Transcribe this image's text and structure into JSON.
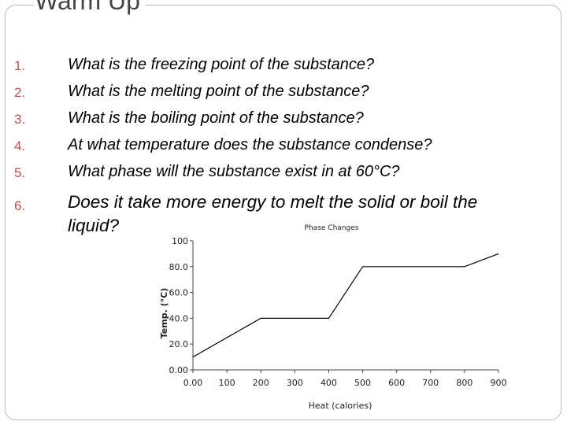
{
  "slide": {
    "title": "Warm Up",
    "questions": [
      {
        "num": "1.",
        "text": "What is the freezing point of the substance?"
      },
      {
        "num": "2.",
        "text": "What is the melting point of the substance?"
      },
      {
        "num": "3.",
        "text": "What is the boiling point of the substance?"
      },
      {
        "num": "4.",
        "text": "At what temperature does the substance condense?"
      },
      {
        "num": "5.",
        "text": "What phase will the substance exist in at 60°C?"
      },
      {
        "num": "6.",
        "text": "Does it take more energy to melt the solid or boil the liquid?"
      }
    ]
  },
  "chart_data": {
    "type": "line",
    "title": "Phase Changes",
    "xlabel": "Heat (calories)",
    "ylabel": "Temp. (°C)",
    "xlim": [
      0,
      900
    ],
    "ylim": [
      0,
      100
    ],
    "x_ticks": [
      "0.00",
      "100",
      "200",
      "300",
      "400",
      "500",
      "600",
      "700",
      "800",
      "900"
    ],
    "y_ticks": [
      "0.00",
      "20.0",
      "40.0",
      "60.0",
      "80.0",
      "100"
    ],
    "x": [
      0,
      200,
      400,
      500,
      800,
      900
    ],
    "y": [
      10,
      40,
      40,
      80,
      80,
      90
    ],
    "grid": false,
    "line_color": "#000000"
  }
}
